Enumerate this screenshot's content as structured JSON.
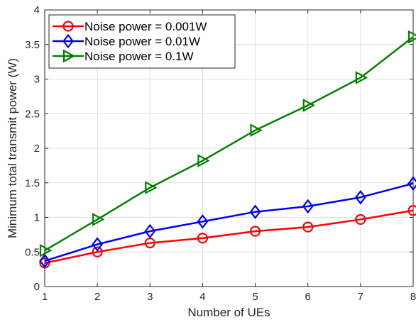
{
  "chart_data": {
    "type": "line",
    "title": "",
    "xlabel": "Number of UEs",
    "ylabel": "Minimum total transmit power (W)",
    "xlim": [
      1,
      8
    ],
    "ylim": [
      0,
      4
    ],
    "x": [
      1,
      2,
      3,
      4,
      5,
      6,
      7,
      8
    ],
    "xticks": [
      "1",
      "2",
      "3",
      "4",
      "5",
      "6",
      "7",
      "8"
    ],
    "yticks": [
      "0",
      "0.5",
      "1",
      "1.5",
      "2",
      "2.5",
      "3",
      "3.5",
      "4"
    ],
    "grid": true,
    "legend_position": "top-left",
    "series": [
      {
        "name": "Noise power = 0.001W",
        "color": "#ff0000",
        "marker": "circle",
        "values": [
          0.34,
          0.5,
          0.63,
          0.7,
          0.8,
          0.86,
          0.97,
          1.1
        ]
      },
      {
        "name": "Noise power = 0.01W",
        "color": "#0000ff",
        "marker": "diamond",
        "values": [
          0.37,
          0.61,
          0.8,
          0.94,
          1.08,
          1.16,
          1.29,
          1.49
        ]
      },
      {
        "name": "Noise power = 0.1W",
        "color": "#008000",
        "marker": "triangle-right",
        "values": [
          0.52,
          0.97,
          1.43,
          1.82,
          2.26,
          2.62,
          3.02,
          3.61
        ]
      }
    ]
  }
}
